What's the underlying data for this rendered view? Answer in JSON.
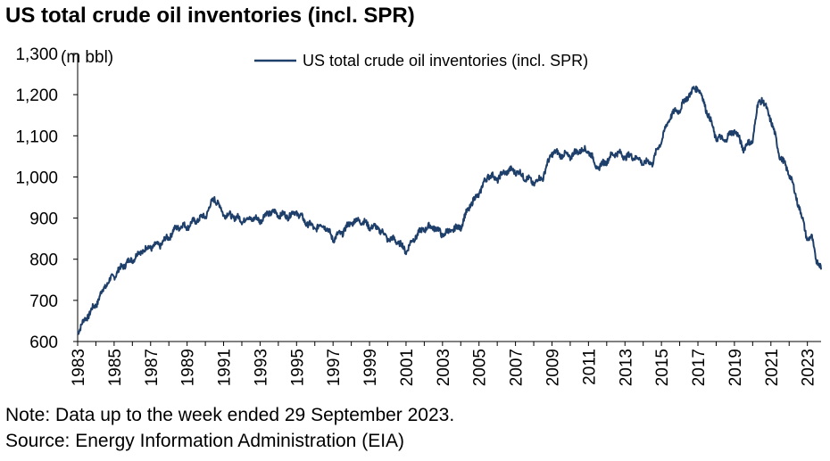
{
  "title": "US total crude oil inventories (incl. SPR)",
  "note": "Note: Data up to the week ended 29 September 2023.",
  "source": "Source: Energy Information Administration (EIA)",
  "line_color": "#1F3F6B",
  "chart_data": {
    "type": "line",
    "ylabel": "(m bbl)",
    "ylim": [
      600,
      1300
    ],
    "y_ticks": [
      600,
      700,
      800,
      900,
      1000,
      1100,
      1200,
      1300
    ],
    "y_tick_labels": [
      "600",
      "700",
      "800",
      "900",
      "1,000",
      "1,100",
      "1,200",
      "1,300"
    ],
    "xlim": [
      1983.0,
      2023.75
    ],
    "x_ticks": [
      "1983",
      "1985",
      "1987",
      "1989",
      "1991",
      "1993",
      "1995",
      "1997",
      "1999",
      "2001",
      "2003",
      "2005",
      "2007",
      "2009",
      "2011",
      "2013",
      "2015",
      "2017",
      "2019",
      "2021",
      "2023"
    ],
    "legend_position": "top",
    "grid": false,
    "series": [
      {
        "name": "US total crude oil inventories (incl. SPR)",
        "x": [
          1983.0,
          1983.5,
          1984.0,
          1984.5,
          1985.0,
          1985.5,
          1986.0,
          1986.5,
          1987.0,
          1987.5,
          1988.0,
          1988.5,
          1989.0,
          1989.5,
          1990.0,
          1990.5,
          1991.0,
          1991.5,
          1992.0,
          1992.5,
          1993.0,
          1993.5,
          1994.0,
          1994.5,
          1995.0,
          1995.5,
          1996.0,
          1996.5,
          1997.0,
          1997.5,
          1998.0,
          1998.5,
          1999.0,
          1999.5,
          2000.0,
          2000.5,
          2001.0,
          2001.5,
          2002.0,
          2002.5,
          2003.0,
          2003.5,
          2004.0,
          2004.5,
          2005.0,
          2005.5,
          2006.0,
          2006.5,
          2007.0,
          2007.5,
          2008.0,
          2008.5,
          2009.0,
          2009.5,
          2010.0,
          2010.5,
          2011.0,
          2011.5,
          2012.0,
          2012.5,
          2013.0,
          2013.5,
          2014.0,
          2014.5,
          2015.0,
          2015.5,
          2016.0,
          2016.5,
          2017.0,
          2017.5,
          2018.0,
          2018.5,
          2019.0,
          2019.5,
          2020.0,
          2020.3,
          2020.5,
          2021.0,
          2021.5,
          2022.0,
          2022.5,
          2023.0,
          2023.25,
          2023.5,
          2023.75
        ],
        "values": [
          625,
          660,
          690,
          735,
          760,
          785,
          800,
          820,
          830,
          835,
          855,
          880,
          880,
          895,
          905,
          950,
          910,
          905,
          895,
          900,
          895,
          915,
          910,
          905,
          915,
          890,
          875,
          885,
          850,
          865,
          890,
          895,
          880,
          875,
          850,
          845,
          820,
          855,
          875,
          880,
          860,
          870,
          880,
          930,
          960,
          1005,
          995,
          1015,
          1015,
          1000,
          985,
          1000,
          1060,
          1055,
          1050,
          1065,
          1065,
          1020,
          1040,
          1060,
          1050,
          1050,
          1035,
          1035,
          1090,
          1150,
          1165,
          1200,
          1220,
          1160,
          1095,
          1090,
          1115,
          1070,
          1090,
          1180,
          1190,
          1140,
          1050,
          1010,
          935,
          850,
          850,
          800,
          775
        ]
      }
    ]
  }
}
